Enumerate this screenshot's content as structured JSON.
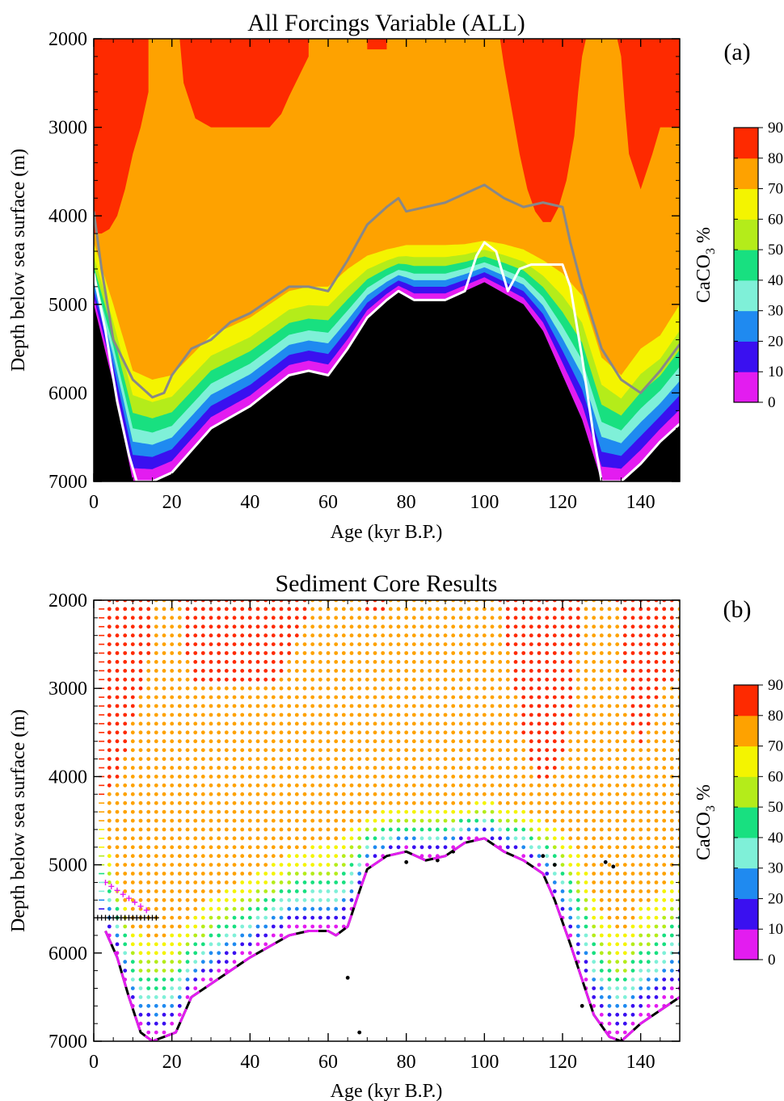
{
  "colors": {
    "bins": [
      "#e31cf0",
      "#3a10f0",
      "#1f8af0",
      "#7ff0d8",
      "#18e080",
      "#b4ec1a",
      "#f4f400",
      "#fea200",
      "#fe2a00"
    ],
    "floor": "#000000",
    "lysocline": "#ffffff",
    "grey_line": "#888888",
    "dashed_magenta": "#e31cf0"
  },
  "icons": {
    "undersaturated_marker": "plus-marker",
    "core_marker": "filled-dot"
  },
  "chart_data": [
    {
      "type": "heatmap",
      "panel_label": "(a)",
      "title": "All Forcings Variable (ALL)",
      "xlabel": "Age (kyr B.P.)",
      "ylabel": "Depth below sea surface (m)",
      "xlim": [
        0,
        150
      ],
      "ylim": [
        7000,
        2000
      ],
      "x_ticks": [
        0,
        20,
        40,
        60,
        80,
        100,
        120,
        140
      ],
      "y_ticks": [
        2000,
        3000,
        4000,
        5000,
        6000,
        7000
      ],
      "colorbar": {
        "label": "CaCO",
        "label_sub": "3",
        "label_unit": "%",
        "ticks": [
          0,
          10,
          20,
          30,
          40,
          50,
          60,
          70,
          80,
          90
        ]
      },
      "sea_floor_depth": {
        "x": [
          0,
          5,
          10,
          15,
          20,
          30,
          40,
          50,
          55,
          60,
          65,
          70,
          75,
          78,
          82,
          90,
          95,
          100,
          110,
          115,
          120,
          125,
          130,
          135,
          140,
          145,
          150
        ],
        "y": [
          5000,
          5900,
          7000,
          7000,
          6900,
          6400,
          6150,
          5800,
          5750,
          5800,
          5500,
          5150,
          4950,
          4850,
          4950,
          4950,
          4850,
          4750,
          5000,
          5300,
          5800,
          6300,
          7000,
          7000,
          6800,
          6550,
          6350
        ]
      },
      "bin_60_70_boundary": {
        "x": [
          0,
          5,
          10,
          15,
          20,
          30,
          40,
          50,
          55,
          60,
          65,
          70,
          75,
          80,
          85,
          90,
          95,
          100,
          105,
          110,
          115,
          120,
          125,
          130,
          135,
          140,
          145,
          150
        ],
        "y": [
          4300,
          5000,
          5750,
          5850,
          5800,
          5350,
          5150,
          4850,
          4800,
          4800,
          4600,
          4450,
          4380,
          4330,
          4330,
          4330,
          4320,
          4280,
          4320,
          4380,
          4500,
          4650,
          4900,
          5600,
          5800,
          5500,
          5350,
          5000
        ]
      },
      "bin_80_90_boundary_left": {
        "x": [
          0,
          2,
          4,
          6,
          8,
          10,
          12,
          14,
          14,
          15,
          16,
          18,
          20
        ],
        "y": [
          4200,
          4200,
          4150,
          4000,
          3700,
          3300,
          3000,
          2600,
          2000,
          2000,
          2000,
          2000,
          2000
        ]
      },
      "bin_80_90_patches": [
        {
          "x": [
            22,
            23,
            26,
            30,
            35,
            40,
            45,
            48,
            50,
            55,
            55
          ],
          "y": [
            2000,
            2500,
            2900,
            3000,
            3000,
            3000,
            3000,
            2850,
            2650,
            2200,
            2000
          ]
        },
        {
          "x": [
            70,
            70,
            75,
            75
          ],
          "y": [
            2000,
            2120,
            2120,
            2000
          ]
        },
        {
          "x": [
            104,
            105,
            107,
            109,
            111,
            113,
            115,
            117,
            119,
            121,
            123,
            124,
            125,
            126
          ],
          "y": [
            2000,
            2300,
            2800,
            3300,
            3700,
            3950,
            4070,
            4070,
            3900,
            3600,
            3100,
            2600,
            2200,
            2000
          ]
        },
        {
          "x": [
            134,
            135,
            136,
            137,
            140,
            143,
            145,
            150,
            150
          ],
          "y": [
            2000,
            2200,
            2800,
            3300,
            3700,
            3300,
            3000,
            3000,
            2000
          ]
        }
      ],
      "grey_line": {
        "x": [
          0,
          2,
          5,
          10,
          15,
          18,
          20,
          25,
          30,
          35,
          40,
          45,
          50,
          55,
          60,
          65,
          70,
          75,
          78,
          80,
          85,
          90,
          95,
          100,
          105,
          110,
          115,
          120,
          122,
          125,
          130,
          135,
          140,
          145,
          150
        ],
        "y": [
          3950,
          4600,
          5400,
          5850,
          6050,
          6000,
          5800,
          5500,
          5400,
          5200,
          5100,
          4950,
          4800,
          4800,
          4850,
          4500,
          4100,
          3900,
          3800,
          3950,
          3900,
          3850,
          3750,
          3650,
          3800,
          3900,
          3850,
          3900,
          4300,
          4800,
          5500,
          5850,
          6000,
          5750,
          5450
        ]
      },
      "white_line": {
        "x": [
          0,
          3,
          6,
          9,
          11,
          13,
          15,
          20,
          30,
          40,
          50,
          55,
          60,
          65,
          70,
          75,
          78,
          82,
          90,
          95,
          98,
          100,
          103,
          106,
          109,
          112,
          115,
          120,
          122,
          125,
          128,
          130,
          135,
          140,
          145,
          150
        ],
        "y": [
          4650,
          5300,
          6100,
          6700,
          7000,
          7000,
          7000,
          6900,
          6400,
          6150,
          5800,
          5750,
          5800,
          5500,
          5150,
          4950,
          4850,
          4950,
          4950,
          4850,
          4450,
          4300,
          4400,
          4850,
          4600,
          4550,
          4550,
          4550,
          4800,
          5600,
          6500,
          7000,
          7000,
          6800,
          6550,
          6350
        ]
      }
    },
    {
      "type": "scatter",
      "panel_label": "(b)",
      "title": "Sediment Core Results",
      "xlabel": "Age (kyr B.P.)",
      "ylabel": "Depth below sea surface (m)",
      "xlim": [
        0,
        150
      ],
      "ylim": [
        7000,
        2000
      ],
      "x_ticks": [
        0,
        20,
        40,
        60,
        80,
        100,
        120,
        140
      ],
      "y_ticks": [
        2000,
        3000,
        4000,
        5000,
        6000,
        7000
      ],
      "colorbar": {
        "label": "CaCO",
        "label_sub": "3",
        "label_unit": "%",
        "ticks": [
          0,
          10,
          20,
          30,
          40,
          50,
          60,
          70,
          80,
          90
        ]
      },
      "core_depths": {
        "start": 2000,
        "step": 100,
        "count": 50
      },
      "sample_spacing_kyr": 2,
      "dashed_line": {
        "x": [
          3,
          6,
          9,
          12,
          15,
          18,
          21,
          25,
          30,
          40,
          50,
          55,
          60,
          62,
          65,
          68,
          70,
          75,
          80,
          85,
          90,
          95,
          100,
          105,
          110,
          115,
          118,
          122,
          125,
          128,
          132,
          135,
          140,
          145,
          150
        ],
        "y": [
          5750,
          6050,
          6500,
          6900,
          7000,
          6950,
          6900,
          6500,
          6350,
          6050,
          5800,
          5750,
          5750,
          5800,
          5700,
          5300,
          5050,
          4900,
          4850,
          4950,
          4900,
          4750,
          4700,
          4850,
          4950,
          5100,
          5400,
          5900,
          6300,
          6700,
          6950,
          7000,
          6800,
          6650,
          6500
        ]
      },
      "floor_dots": [
        [
          65,
          6280
        ],
        [
          68,
          6900
        ],
        [
          125,
          6600
        ],
        [
          131,
          4970
        ],
        [
          133,
          5020
        ],
        [
          80,
          4970
        ],
        [
          88,
          4950
        ],
        [
          92,
          4850
        ],
        [
          115,
          4900
        ],
        [
          118,
          5000
        ]
      ],
      "surface_crosses": {
        "start_kyr": 0,
        "end_kyr": 16,
        "step_kyr": 1
      }
    }
  ]
}
